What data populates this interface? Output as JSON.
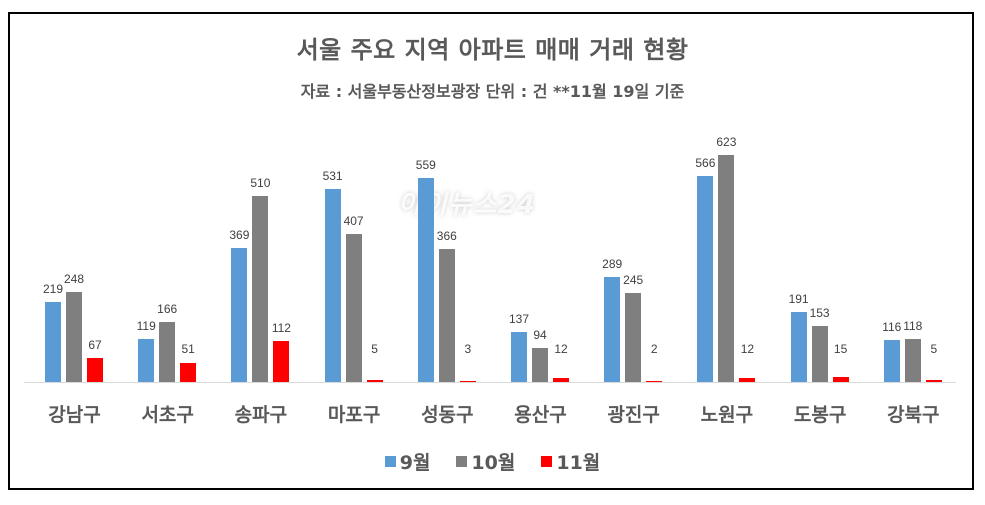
{
  "chart_data": {
    "type": "bar",
    "title": "서울 주요 지역 아파트 매매 거래 현황",
    "subtitle": "자료 : 서울부동산정보광장   단위 : 건  **11월 19일 기준",
    "xlabel": "",
    "ylabel": "",
    "ylim": [
      0,
      700
    ],
    "grid": false,
    "legend_position": "bottom",
    "categories": [
      "강남구",
      "서초구",
      "송파구",
      "마포구",
      "성동구",
      "용산구",
      "광진구",
      "노원구",
      "도봉구",
      "강북구"
    ],
    "series": [
      {
        "name": "9월",
        "color": "#5b9bd5",
        "values": [
          219,
          119,
          369,
          531,
          559,
          137,
          289,
          566,
          191,
          116
        ]
      },
      {
        "name": "10월",
        "color": "#7f7f7f",
        "values": [
          248,
          166,
          510,
          407,
          366,
          94,
          245,
          623,
          153,
          118
        ]
      },
      {
        "name": "11월",
        "color": "#ff0000",
        "values": [
          67,
          51,
          112,
          5,
          3,
          12,
          2,
          12,
          15,
          5
        ]
      }
    ]
  },
  "watermark": "아이뉴스24"
}
